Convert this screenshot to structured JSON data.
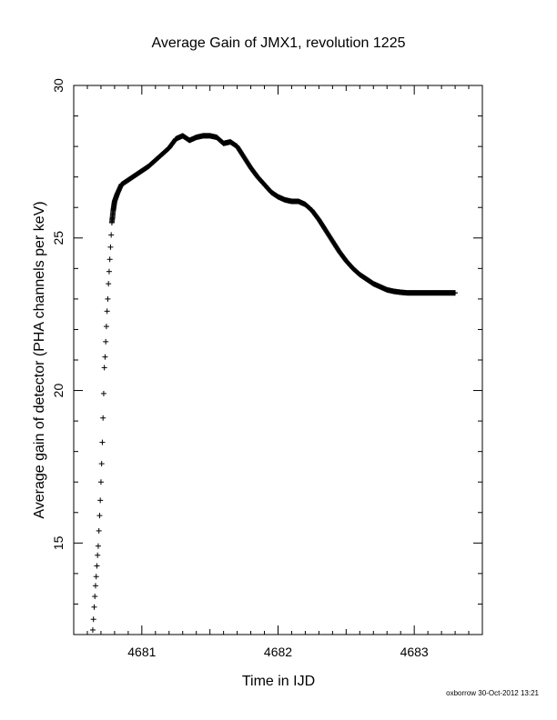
{
  "chart_data": {
    "type": "scatter",
    "title": "Average Gain of JMX1, revolution 1225",
    "xlabel": "Time in IJD",
    "ylabel": "Average gain of detector (PHA channels per keV)",
    "xlim": [
      4680.5,
      4683.5
    ],
    "ylim": [
      12,
      30
    ],
    "xticks": [
      4681,
      4682,
      4683
    ],
    "yticks": [
      15,
      20,
      25,
      30
    ],
    "marker": "plus",
    "points": [
      [
        4680.64,
        12.15
      ],
      [
        4680.645,
        12.5
      ],
      [
        4680.65,
        12.9
      ],
      [
        4680.655,
        13.25
      ],
      [
        4680.66,
        13.6
      ],
      [
        4680.665,
        13.9
      ],
      [
        4680.67,
        14.25
      ],
      [
        4680.675,
        14.6
      ],
      [
        4680.68,
        14.9
      ],
      [
        4680.685,
        15.4
      ],
      [
        4680.69,
        15.9
      ],
      [
        4680.695,
        16.4
      ],
      [
        4680.7,
        17.0
      ],
      [
        4680.705,
        17.6
      ],
      [
        4680.71,
        18.3
      ],
      [
        4680.715,
        19.1
      ],
      [
        4680.72,
        19.9
      ],
      [
        4680.725,
        20.75
      ],
      [
        4680.73,
        21.1
      ],
      [
        4680.735,
        21.6
      ],
      [
        4680.74,
        22.1
      ],
      [
        4680.745,
        22.6
      ],
      [
        4680.75,
        23.0
      ],
      [
        4680.755,
        23.5
      ],
      [
        4680.76,
        23.9
      ],
      [
        4680.765,
        24.3
      ],
      [
        4680.77,
        24.7
      ],
      [
        4680.775,
        25.1
      ],
      [
        4680.78,
        25.5
      ],
      [
        4680.79,
        25.9
      ],
      [
        4680.8,
        26.2
      ],
      [
        4680.82,
        26.45
      ],
      [
        4680.85,
        26.75
      ],
      [
        4680.9,
        26.9
      ],
      [
        4680.95,
        27.05
      ],
      [
        4681.0,
        27.2
      ],
      [
        4681.05,
        27.35
      ],
      [
        4681.1,
        27.55
      ],
      [
        4681.15,
        27.75
      ],
      [
        4681.2,
        27.95
      ],
      [
        4681.25,
        28.25
      ],
      [
        4681.3,
        28.35
      ],
      [
        4681.35,
        28.2
      ],
      [
        4681.4,
        28.3
      ],
      [
        4681.45,
        28.35
      ],
      [
        4681.5,
        28.35
      ],
      [
        4681.55,
        28.3
      ],
      [
        4681.6,
        28.1
      ],
      [
        4681.65,
        28.15
      ],
      [
        4681.7,
        28.0
      ],
      [
        4681.75,
        27.65
      ],
      [
        4681.8,
        27.3
      ],
      [
        4681.85,
        27.0
      ],
      [
        4681.9,
        26.75
      ],
      [
        4681.95,
        26.5
      ],
      [
        4682.0,
        26.35
      ],
      [
        4682.05,
        26.25
      ],
      [
        4682.1,
        26.2
      ],
      [
        4682.15,
        26.2
      ],
      [
        4682.2,
        26.1
      ],
      [
        4682.25,
        25.9
      ],
      [
        4682.3,
        25.6
      ],
      [
        4682.35,
        25.25
      ],
      [
        4682.4,
        24.9
      ],
      [
        4682.45,
        24.55
      ],
      [
        4682.5,
        24.25
      ],
      [
        4682.55,
        24.0
      ],
      [
        4682.6,
        23.8
      ],
      [
        4682.65,
        23.65
      ],
      [
        4682.7,
        23.5
      ],
      [
        4682.75,
        23.4
      ],
      [
        4682.8,
        23.3
      ],
      [
        4682.85,
        23.25
      ],
      [
        4682.9,
        23.22
      ],
      [
        4682.95,
        23.2
      ],
      [
        4683.0,
        23.2
      ],
      [
        4683.05,
        23.2
      ],
      [
        4683.1,
        23.2
      ],
      [
        4683.15,
        23.2
      ],
      [
        4683.2,
        23.2
      ],
      [
        4683.25,
        23.2
      ],
      [
        4683.3,
        23.2
      ]
    ]
  },
  "footer": "oxborrow 30-Oct-2012 13:21"
}
